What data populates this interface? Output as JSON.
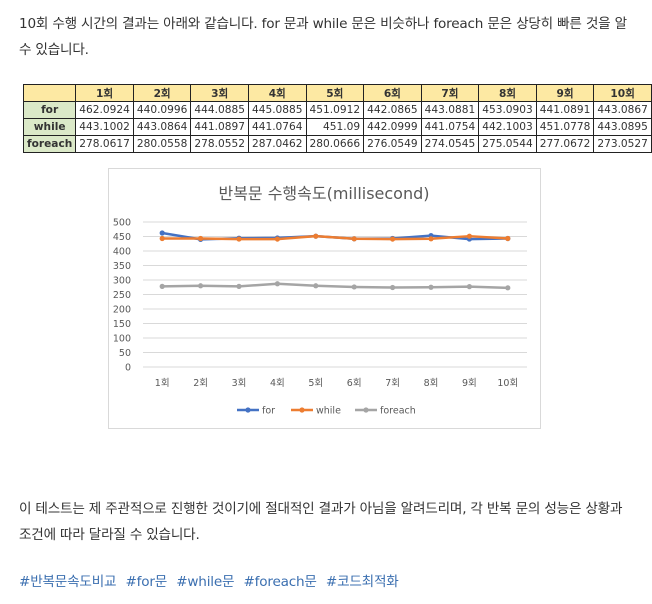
{
  "intro_text": "10회 수행 시간의 결과는 아래와 같습니다. for 문과 while 문은 비슷하나 foreach 문은 상당히 빠른 것을 알 수 있습니다.",
  "table": {
    "columns": [
      "1회",
      "2회",
      "3회",
      "4회",
      "5회",
      "6회",
      "7회",
      "8회",
      "9회",
      "10회"
    ],
    "rows": [
      {
        "label": "for",
        "values": [
          "462.0924",
          "440.0996",
          "444.0885",
          "445.0885",
          "451.0912",
          "442.0865",
          "443.0881",
          "453.0903",
          "441.0891",
          "443.0867"
        ]
      },
      {
        "label": "while",
        "values": [
          "443.1002",
          "443.0864",
          "441.0897",
          "441.0764",
          "451.09",
          "442.0999",
          "441.0754",
          "442.1003",
          "451.0778",
          "443.0895"
        ]
      },
      {
        "label": "foreach",
        "values": [
          "278.0617",
          "280.0558",
          "278.0552",
          "287.0462",
          "280.0666",
          "276.0549",
          "274.0545",
          "275.0544",
          "277.0672",
          "273.0527"
        ]
      }
    ]
  },
  "chart_data": {
    "type": "line",
    "title": "반복문 수행속도(millisecond)",
    "categories": [
      "1회",
      "2회",
      "3회",
      "4회",
      "5회",
      "6회",
      "7회",
      "8회",
      "9회",
      "10회"
    ],
    "series": [
      {
        "name": "for",
        "color": "#4472c4",
        "values": [
          462.0924,
          440.0996,
          444.0885,
          445.0885,
          451.0912,
          442.0865,
          443.0881,
          453.0903,
          441.0891,
          443.0867
        ]
      },
      {
        "name": "while",
        "color": "#ed7d31",
        "values": [
          443.1002,
          443.0864,
          441.0897,
          441.0764,
          451.09,
          442.0999,
          441.0754,
          442.1003,
          451.0778,
          443.0895
        ]
      },
      {
        "name": "foreach",
        "color": "#a5a5a5",
        "values": [
          278.0617,
          280.0558,
          278.0552,
          287.0462,
          280.0666,
          276.0549,
          274.0545,
          275.0544,
          277.0672,
          273.0527
        ]
      }
    ],
    "ylim": [
      0,
      500
    ],
    "yticks": [
      "0",
      "50",
      "100",
      "150",
      "200",
      "250",
      "300",
      "350",
      "400",
      "450",
      "500"
    ],
    "grid": true,
    "legend": "bottom"
  },
  "note_text": "이 테스트는 제 주관적으로 진행한 것이기에 절대적인 결과가 아님을 알려드리며, 각 반복 문의 성능은 상황과 조건에 따라 달라질 수 있습니다.",
  "tags": [
    "#반복문속도비교",
    "#for문",
    "#while문",
    "#foreach문",
    "#코드최적화"
  ]
}
